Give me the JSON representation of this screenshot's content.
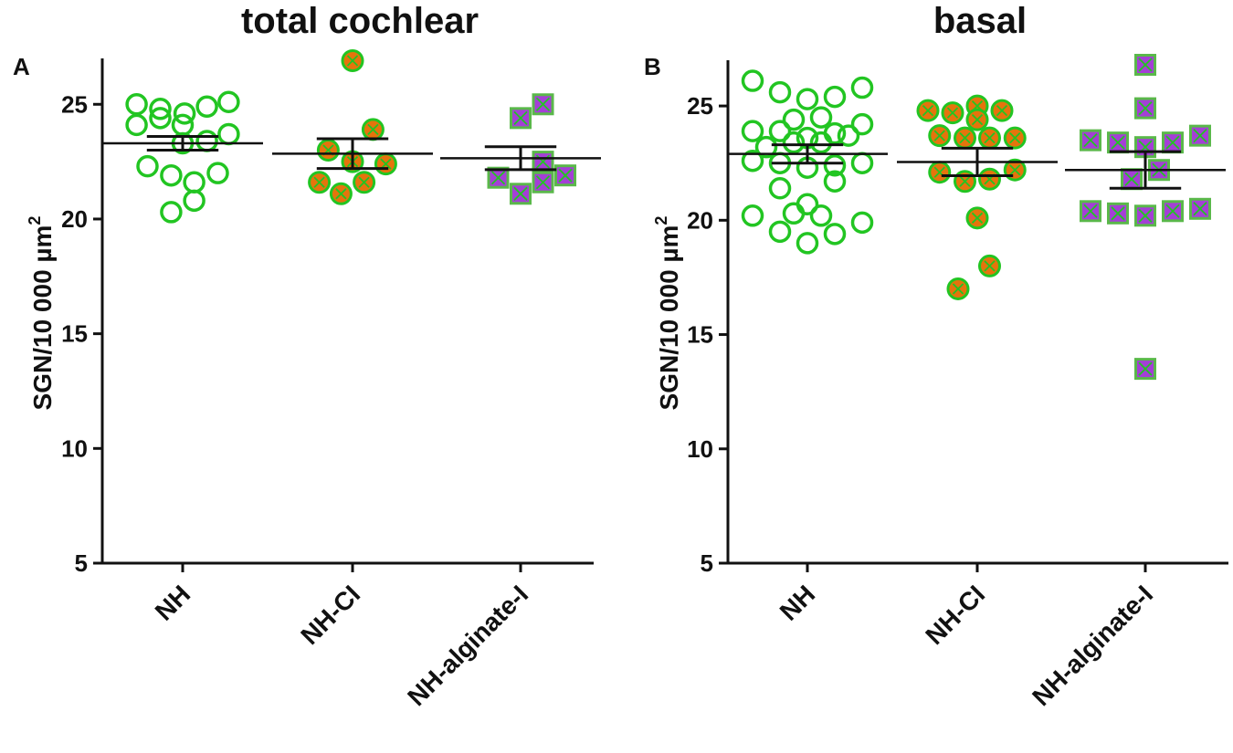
{
  "chart_data": [
    {
      "panel": "A",
      "type": "scatter",
      "title": "total cochlear",
      "ylabel": "SGN/10 000 µm",
      "ylabel_superscript": "2",
      "ylim": [
        5,
        27
      ],
      "yticks": [
        5,
        10,
        15,
        20,
        25
      ],
      "categories": [
        "NH",
        "NH-CI",
        "NH-alginate-I"
      ],
      "groups": [
        {
          "name": "NH",
          "marker": "open-circle",
          "mean": 23.3,
          "sem": [
            23.0,
            23.6
          ],
          "points": [
            {
              "j": -0.72,
              "y": 25.0
            },
            {
              "j": -0.35,
              "y": 24.8
            },
            {
              "j": 0.03,
              "y": 24.6
            },
            {
              "j": 0.38,
              "y": 24.9
            },
            {
              "j": 0.72,
              "y": 25.1
            },
            {
              "j": -0.72,
              "y": 24.1
            },
            {
              "j": -0.35,
              "y": 24.4
            },
            {
              "j": 0.0,
              "y": 24.1
            },
            {
              "j": 0.38,
              "y": 23.4
            },
            {
              "j": 0.72,
              "y": 23.7
            },
            {
              "j": -0.55,
              "y": 22.3
            },
            {
              "j": -0.18,
              "y": 21.9
            },
            {
              "j": 0.18,
              "y": 21.6
            },
            {
              "j": 0.55,
              "y": 22.0
            },
            {
              "j": -0.18,
              "y": 20.3
            },
            {
              "j": 0.18,
              "y": 20.8
            },
            {
              "j": 0.0,
              "y": 23.3
            }
          ]
        },
        {
          "name": "NH-CI",
          "marker": "filled-circle-x",
          "mean": 22.85,
          "sem": [
            22.2,
            23.5
          ],
          "points": [
            {
              "j": 0.0,
              "y": 26.9
            },
            {
              "j": 0.32,
              "y": 23.9
            },
            {
              "j": -0.38,
              "y": 23.0
            },
            {
              "j": 0.0,
              "y": 22.5
            },
            {
              "j": 0.52,
              "y": 22.4
            },
            {
              "j": -0.52,
              "y": 21.6
            },
            {
              "j": -0.18,
              "y": 21.1
            },
            {
              "j": 0.18,
              "y": 21.6
            }
          ]
        },
        {
          "name": "NH-alginate-I",
          "marker": "filled-square-x",
          "mean": 22.65,
          "sem": [
            22.15,
            23.15
          ],
          "points": [
            {
              "j": 0.35,
              "y": 25.0
            },
            {
              "j": 0.0,
              "y": 24.4
            },
            {
              "j": 0.35,
              "y": 22.5
            },
            {
              "j": -0.35,
              "y": 21.8
            },
            {
              "j": 0.35,
              "y": 21.6
            },
            {
              "j": 0.7,
              "y": 21.9
            },
            {
              "j": 0.0,
              "y": 21.1
            }
          ]
        }
      ]
    },
    {
      "panel": "B",
      "type": "scatter",
      "title": "basal",
      "ylabel": "SGN/10 000 µm",
      "ylabel_superscript": "2",
      "ylim": [
        5,
        27
      ],
      "yticks": [
        5,
        10,
        15,
        20,
        25
      ],
      "categories": [
        "NH",
        "NH-CI",
        "NH-alginate-I"
      ],
      "groups": [
        {
          "name": "NH",
          "marker": "open-circle",
          "mean": 22.9,
          "sem": [
            22.5,
            23.3
          ],
          "points": [
            {
              "j": -0.8,
              "y": 26.1
            },
            {
              "j": -0.4,
              "y": 25.6
            },
            {
              "j": 0.0,
              "y": 25.3
            },
            {
              "j": 0.4,
              "y": 25.4
            },
            {
              "j": 0.8,
              "y": 25.8
            },
            {
              "j": -0.8,
              "y": 23.9
            },
            {
              "j": -0.6,
              "y": 23.2
            },
            {
              "j": -0.4,
              "y": 23.9
            },
            {
              "j": -0.2,
              "y": 24.4
            },
            {
              "j": 0.2,
              "y": 24.5
            },
            {
              "j": 0.4,
              "y": 23.8
            },
            {
              "j": 0.6,
              "y": 23.7
            },
            {
              "j": 0.8,
              "y": 24.2
            },
            {
              "j": -0.8,
              "y": 22.6
            },
            {
              "j": -0.4,
              "y": 22.5
            },
            {
              "j": 0.0,
              "y": 22.3
            },
            {
              "j": 0.4,
              "y": 22.4
            },
            {
              "j": 0.8,
              "y": 22.5
            },
            {
              "j": -0.4,
              "y": 21.4
            },
            {
              "j": 0.4,
              "y": 21.7
            },
            {
              "j": -0.8,
              "y": 20.2
            },
            {
              "j": -0.2,
              "y": 20.3
            },
            {
              "j": 0.0,
              "y": 20.7
            },
            {
              "j": 0.2,
              "y": 20.2
            },
            {
              "j": 0.8,
              "y": 19.9
            },
            {
              "j": -0.4,
              "y": 19.5
            },
            {
              "j": 0.0,
              "y": 19.0
            },
            {
              "j": 0.4,
              "y": 19.4
            },
            {
              "j": -0.2,
              "y": 23.4
            },
            {
              "j": 0.2,
              "y": 23.4
            },
            {
              "j": 0.0,
              "y": 23.6
            }
          ]
        },
        {
          "name": "NH-CI",
          "marker": "filled-circle-x",
          "mean": 22.55,
          "sem": [
            21.95,
            23.15
          ],
          "points": [
            {
              "j": -0.72,
              "y": 24.8
            },
            {
              "j": -0.36,
              "y": 24.7
            },
            {
              "j": 0.0,
              "y": 25.0
            },
            {
              "j": 0.0,
              "y": 24.4
            },
            {
              "j": 0.36,
              "y": 24.8
            },
            {
              "j": -0.55,
              "y": 23.7
            },
            {
              "j": -0.18,
              "y": 23.6
            },
            {
              "j": 0.18,
              "y": 23.6
            },
            {
              "j": 0.55,
              "y": 23.6
            },
            {
              "j": -0.55,
              "y": 22.1
            },
            {
              "j": 0.55,
              "y": 22.2
            },
            {
              "j": -0.18,
              "y": 21.7
            },
            {
              "j": 0.18,
              "y": 21.8
            },
            {
              "j": 0.0,
              "y": 20.1
            },
            {
              "j": 0.18,
              "y": 18.0
            },
            {
              "j": -0.28,
              "y": 17.0
            }
          ]
        },
        {
          "name": "NH-alginate-I",
          "marker": "filled-square-x",
          "mean": 22.2,
          "sem": [
            21.4,
            23.0
          ],
          "points": [
            {
              "j": 0.0,
              "y": 26.8
            },
            {
              "j": 0.0,
              "y": 24.9
            },
            {
              "j": -0.8,
              "y": 23.5
            },
            {
              "j": -0.4,
              "y": 23.4
            },
            {
              "j": 0.0,
              "y": 23.2
            },
            {
              "j": 0.4,
              "y": 23.4
            },
            {
              "j": 0.8,
              "y": 23.7
            },
            {
              "j": 0.2,
              "y": 22.2
            },
            {
              "j": -0.2,
              "y": 21.8
            },
            {
              "j": -0.8,
              "y": 20.4
            },
            {
              "j": -0.4,
              "y": 20.3
            },
            {
              "j": 0.0,
              "y": 20.2
            },
            {
              "j": 0.4,
              "y": 20.4
            },
            {
              "j": 0.8,
              "y": 20.5
            },
            {
              "j": 0.0,
              "y": 13.5
            }
          ]
        }
      ]
    }
  ],
  "colors": {
    "circle_stroke": "#22c522",
    "circle_fill": "#e5740c",
    "square_fill": "#a43fd6",
    "square_stroke": "#5ab84a",
    "cross": "#22c522",
    "axis": "#111111"
  }
}
